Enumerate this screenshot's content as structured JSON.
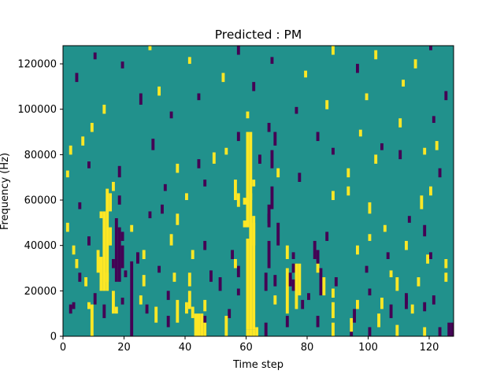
{
  "chart_data": {
    "type": "heatmap",
    "title": "Predicted : PM",
    "xlabel": "Time step",
    "ylabel": "Frequency (Hz)",
    "xlim": [
      0,
      128
    ],
    "ylim": [
      0,
      128000
    ],
    "x_ticks": [
      0,
      20,
      40,
      60,
      80,
      100,
      120
    ],
    "y_ticks": [
      0,
      20000,
      40000,
      60000,
      80000,
      100000,
      120000
    ],
    "grid": false,
    "legend": "none",
    "grid_shape": {
      "time_steps": 128,
      "frequency_bins": 128,
      "bin_width_hz": 1000
    },
    "colors": {
      "background": "#21918c",
      "high": "#fde725",
      "low": "#440154",
      "axes": "#000000",
      "figure": "#ffffff"
    },
    "cell_values": {
      "low": 0.0,
      "mid": 0.5,
      "high": 1.0
    },
    "background_value": 0.5,
    "cells": [
      [
        9,
        0,
        14,
        1
      ],
      [
        22,
        0,
        33,
        0
      ],
      [
        46,
        0,
        9,
        0
      ],
      [
        63,
        0,
        4,
        1
      ],
      [
        88,
        0,
        6,
        1
      ],
      [
        94,
        0,
        6,
        0
      ],
      [
        100,
        0,
        4,
        0
      ],
      [
        109,
        0,
        5,
        1
      ],
      [
        118,
        0,
        4,
        1
      ],
      [
        123,
        0,
        4,
        0
      ],
      [
        126,
        0,
        6,
        0
      ],
      [
        127,
        0,
        6,
        0
      ],
      [
        34,
        4,
        5,
        0
      ],
      [
        73,
        4,
        5,
        0
      ],
      [
        83,
        4,
        5,
        0
      ],
      [
        103,
        4,
        6,
        1
      ],
      [
        30,
        6,
        7,
        1
      ],
      [
        37,
        6,
        10,
        1
      ],
      [
        13,
        8,
        6,
        0
      ],
      [
        42,
        8,
        5,
        1
      ],
      [
        54,
        8,
        4,
        0
      ],
      [
        88,
        8,
        7,
        1
      ],
      [
        107,
        8,
        6,
        0
      ],
      [
        2,
        10,
        4,
        0
      ],
      [
        17,
        10,
        3,
        1
      ],
      [
        27,
        10,
        4,
        0
      ],
      [
        114,
        10,
        4,
        1
      ],
      [
        46,
        11,
        5,
        1
      ],
      [
        118,
        11,
        4,
        0
      ],
      [
        3,
        12,
        3,
        0
      ],
      [
        78,
        12,
        4,
        0
      ],
      [
        104,
        12,
        5,
        1
      ],
      [
        112,
        12,
        6,
        0
      ],
      [
        96,
        12,
        4,
        1
      ],
      [
        8,
        12,
        3,
        1
      ],
      [
        10,
        14,
        5,
        0
      ],
      [
        19,
        14,
        3,
        0
      ],
      [
        25,
        14,
        4,
        1
      ],
      [
        34,
        16,
        4,
        0
      ],
      [
        69,
        14,
        4,
        1
      ],
      [
        80,
        16,
        3,
        0
      ],
      [
        112,
        14,
        5,
        0
      ],
      [
        121,
        14,
        4,
        0
      ],
      [
        88,
        17,
        4,
        1
      ],
      [
        57,
        18,
        3,
        0
      ],
      [
        100,
        18,
        3,
        0
      ],
      [
        51,
        20,
        6,
        0
      ],
      [
        75,
        20,
        5,
        0
      ],
      [
        109,
        20,
        6,
        1
      ],
      [
        7,
        22,
        4,
        1
      ],
      [
        26,
        22,
        5,
        1
      ],
      [
        41,
        22,
        6,
        1
      ],
      [
        69,
        22,
        5,
        0
      ],
      [
        89,
        22,
        4,
        0
      ],
      [
        116,
        22,
        4,
        1
      ],
      [
        5,
        24,
        4,
        0
      ],
      [
        14,
        24,
        4,
        1
      ],
      [
        36,
        24,
        4,
        1
      ],
      [
        48,
        24,
        5,
        0
      ],
      [
        125,
        24,
        4,
        1
      ],
      [
        20,
        26,
        3,
        0
      ],
      [
        57,
        26,
        5,
        0
      ],
      [
        107,
        26,
        3,
        1
      ],
      [
        31,
        28,
        3,
        0
      ],
      [
        99,
        28,
        3,
        0
      ],
      [
        83,
        28,
        5,
        1
      ],
      [
        4,
        30,
        4,
        1
      ],
      [
        56,
        30,
        4,
        1
      ],
      [
        16,
        30,
        4,
        0
      ],
      [
        125,
        30,
        4,
        1
      ],
      [
        24,
        32,
        5,
        0
      ],
      [
        83,
        32,
        6,
        0
      ],
      [
        119,
        32,
        4,
        1
      ],
      [
        26,
        34,
        4,
        1
      ],
      [
        42,
        34,
        4,
        1
      ],
      [
        55,
        34,
        4,
        0
      ],
      [
        75,
        34,
        3,
        0
      ],
      [
        106,
        34,
        3,
        0
      ],
      [
        120,
        34,
        3,
        0
      ],
      [
        3,
        36,
        4,
        1
      ],
      [
        96,
        36,
        4,
        1
      ],
      [
        46,
        38,
        4,
        0
      ],
      [
        112,
        38,
        4,
        1
      ],
      [
        8,
        40,
        4,
        0
      ],
      [
        35,
        40,
        5,
        1
      ],
      [
        19,
        42,
        4,
        0
      ],
      [
        86,
        42,
        4,
        0
      ],
      [
        100,
        42,
        3,
        1
      ],
      [
        118,
        44,
        5,
        0
      ],
      [
        1,
        46,
        4,
        1
      ],
      [
        22,
        46,
        3,
        1
      ],
      [
        105,
        46,
        3,
        1
      ],
      [
        59,
        48,
        3,
        1
      ],
      [
        37,
        49,
        5,
        1
      ],
      [
        67,
        50,
        4,
        0
      ],
      [
        113,
        50,
        3,
        0
      ],
      [
        28,
        52,
        3,
        0
      ],
      [
        12,
        52,
        3,
        1
      ],
      [
        32,
        54,
        4,
        0
      ],
      [
        100,
        54,
        5,
        1
      ],
      [
        5,
        56,
        3,
        0
      ],
      [
        117,
        56,
        6,
        1
      ],
      [
        18,
        58,
        4,
        0
      ],
      [
        59,
        58,
        3,
        1
      ],
      [
        40,
        60,
        3,
        1
      ],
      [
        88,
        60,
        4,
        1
      ],
      [
        93,
        62,
        4,
        1
      ],
      [
        120,
        62,
        4,
        1
      ],
      [
        16,
        64,
        4,
        1
      ],
      [
        33,
        64,
        3,
        0
      ],
      [
        46,
        66,
        3,
        0
      ],
      [
        62,
        66,
        3,
        1
      ],
      [
        77,
        68,
        4,
        0
      ],
      [
        1,
        70,
        3,
        1
      ],
      [
        18,
        70,
        5,
        0
      ],
      [
        70,
        70,
        4,
        1
      ],
      [
        93,
        70,
        4,
        1
      ],
      [
        123,
        70,
        4,
        0
      ],
      [
        37,
        72,
        4,
        1
      ],
      [
        8,
        74,
        3,
        0
      ],
      [
        44,
        74,
        4,
        0
      ],
      [
        49,
        76,
        5,
        1
      ],
      [
        64,
        76,
        4,
        0
      ],
      [
        102,
        76,
        4,
        1
      ],
      [
        110,
        78,
        4,
        0
      ],
      [
        2,
        80,
        4,
        1
      ],
      [
        53,
        80,
        3,
        1
      ],
      [
        88,
        80,
        3,
        0
      ],
      [
        118,
        80,
        3,
        1
      ],
      [
        29,
        82,
        5,
        0
      ],
      [
        104,
        82,
        3,
        0
      ],
      [
        122,
        82,
        4,
        1
      ],
      [
        6,
        84,
        4,
        1
      ],
      [
        57,
        86,
        4,
        0
      ],
      [
        83,
        86,
        4,
        0
      ],
      [
        97,
        88,
        3,
        1
      ],
      [
        67,
        90,
        4,
        0
      ],
      [
        9,
        90,
        4,
        1
      ],
      [
        110,
        92,
        4,
        1
      ],
      [
        121,
        94,
        3,
        0
      ],
      [
        35,
        96,
        3,
        0
      ],
      [
        60,
        96,
        3,
        1
      ],
      [
        76,
        98,
        3,
        0
      ],
      [
        13,
        98,
        4,
        1
      ],
      [
        86,
        100,
        4,
        1
      ],
      [
        25,
        102,
        5,
        0
      ],
      [
        44,
        104,
        3,
        0
      ],
      [
        99,
        104,
        3,
        1
      ],
      [
        125,
        104,
        4,
        0
      ],
      [
        31,
        106,
        4,
        1
      ],
      [
        62,
        108,
        4,
        0
      ],
      [
        111,
        110,
        3,
        1
      ],
      [
        4,
        112,
        4,
        0
      ],
      [
        52,
        112,
        4,
        1
      ],
      [
        79,
        114,
        3,
        1
      ],
      [
        96,
        116,
        4,
        0
      ],
      [
        19,
        118,
        3,
        0
      ],
      [
        115,
        118,
        4,
        1
      ],
      [
        41,
        120,
        3,
        1
      ],
      [
        68,
        120,
        3,
        0
      ],
      [
        102,
        122,
        4,
        1
      ],
      [
        10,
        122,
        3,
        0
      ],
      [
        57,
        124,
        4,
        0
      ],
      [
        88,
        124,
        4,
        1
      ],
      [
        28,
        126,
        3,
        1
      ],
      [
        120,
        126,
        3,
        0
      ],
      [
        60,
        0,
        3,
        1
      ],
      [
        61,
        0,
        3,
        1
      ],
      [
        62,
        0,
        3,
        1
      ],
      [
        60,
        3,
        40,
        1
      ],
      [
        61,
        3,
        60,
        1
      ],
      [
        62,
        3,
        50,
        1
      ],
      [
        60,
        48,
        42,
        1
      ],
      [
        61,
        60,
        30,
        1
      ],
      [
        53,
        0,
        9,
        1
      ],
      [
        56,
        60,
        9,
        1
      ],
      [
        57,
        57,
        6,
        1
      ],
      [
        62,
        40,
        10,
        1
      ],
      [
        12,
        20,
        15,
        1
      ],
      [
        13,
        20,
        35,
        1
      ],
      [
        14,
        20,
        45,
        1
      ],
      [
        15,
        55,
        8,
        1
      ],
      [
        11,
        28,
        10,
        1
      ],
      [
        15,
        40,
        8,
        1
      ],
      [
        16,
        10,
        10,
        1
      ],
      [
        17,
        24,
        28,
        0
      ],
      [
        18,
        24,
        24,
        0
      ],
      [
        19,
        30,
        10,
        0
      ],
      [
        43,
        0,
        10,
        1
      ],
      [
        44,
        0,
        10,
        1
      ],
      [
        45,
        0,
        10,
        1
      ],
      [
        46,
        0,
        6,
        1
      ],
      [
        40,
        10,
        5,
        1
      ],
      [
        41,
        12,
        8,
        1
      ],
      [
        66,
        0,
        6,
        0
      ],
      [
        66,
        20,
        8,
        0
      ],
      [
        67,
        30,
        12,
        0
      ],
      [
        67,
        48,
        10,
        0
      ],
      [
        68,
        56,
        10,
        0
      ],
      [
        70,
        40,
        10,
        0
      ],
      [
        68,
        74,
        8,
        0
      ],
      [
        69,
        84,
        6,
        0
      ],
      [
        73,
        10,
        20,
        1
      ],
      [
        73,
        34,
        6,
        1
      ],
      [
        76,
        12,
        20,
        1
      ],
      [
        77,
        18,
        14,
        1
      ],
      [
        74,
        22,
        6,
        0
      ],
      [
        75,
        28,
        4,
        0
      ],
      [
        84,
        18,
        12,
        0
      ],
      [
        85,
        18,
        8,
        1
      ],
      [
        82,
        34,
        8,
        0
      ],
      [
        94,
        2,
        6,
        1
      ],
      [
        95,
        6,
        6,
        0
      ]
    ]
  }
}
